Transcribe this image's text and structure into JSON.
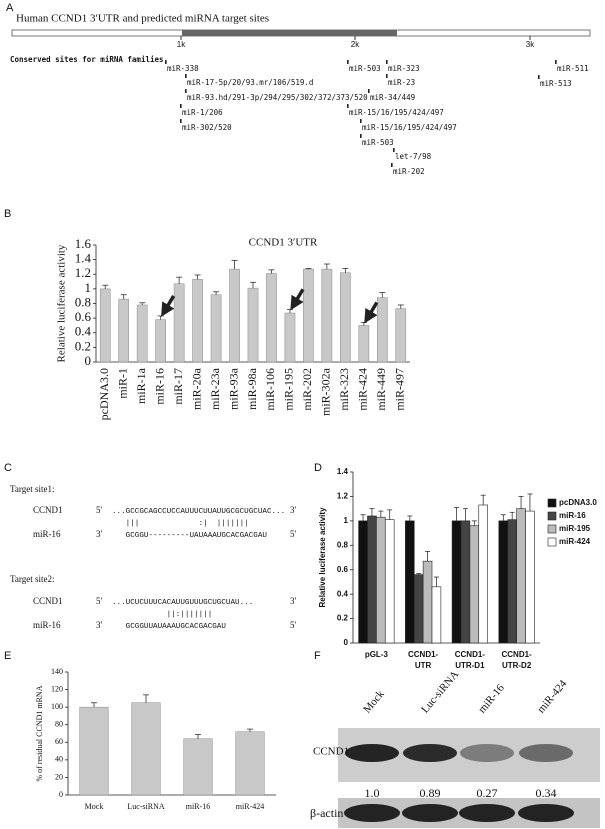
{
  "figure": {
    "panel_labels": [
      "A",
      "B",
      "C",
      "D",
      "E",
      "F"
    ]
  },
  "panel_a": {
    "title": "Human CCND1  3′UTR and predicted miRNA target sites",
    "scale_labels": [
      "1k",
      "2k",
      "3k"
    ],
    "subtitle": "Conserved sites for miRNA families",
    "sites": [
      "miR-338",
      "miR-17-5p/20/93.mr/106/519.d",
      "miR-93.hd/291-3p/294/295/302/372/373/520",
      "miR-1/206",
      "miR-302/520",
      "miR-503",
      "miR-323",
      "miR-23",
      "miR-34/449",
      "miR-15/16/195/424/497",
      "miR-15/16/195/424/497",
      "miR-503",
      "let-7/98",
      "miR-202",
      "miR-511",
      "miR-513"
    ]
  },
  "chart_data": [
    {
      "type": "bar",
      "title": "CCND1  3′UTR",
      "ylabel": "Relative luciferase activity",
      "categories": [
        "pcDNA3.0",
        "miR-1",
        "miR-1a",
        "miR-16",
        "miR-17",
        "miR-20a",
        "miR-23a",
        "miR-93a",
        "miR-98a",
        "miR-106",
        "miR-195",
        "miR-202",
        "miR-302a",
        "miR-323",
        "miR-424",
        "miR-449",
        "miR-497"
      ],
      "values": [
        1.0,
        0.86,
        0.78,
        0.58,
        1.07,
        1.13,
        0.92,
        1.27,
        1.01,
        1.21,
        0.67,
        1.27,
        1.27,
        1.22,
        0.5,
        0.88,
        0.73
      ],
      "errors": [
        0.05,
        0.06,
        0.03,
        0.05,
        0.09,
        0.06,
        0.04,
        0.12,
        0.08,
        0.05,
        0.05,
        0.01,
        0.07,
        0.06,
        0.04,
        0.07,
        0.05
      ],
      "color": "#c8c8c8",
      "ylim": [
        0,
        1.6
      ],
      "yticks": [
        0,
        0.2,
        0.4,
        0.6,
        0.8,
        1,
        1.2,
        1.4,
        1.6
      ]
    },
    {
      "type": "grouped_bar",
      "ylabel": "Relative luciferase activity",
      "categories": [
        "pGL-3",
        "CCND1-UTR",
        "CCND1-UTR-D1",
        "CCND1-UTR-D2"
      ],
      "series": [
        {
          "name": "pcDNA3.0",
          "color": "#111111",
          "values": [
            1.0,
            1.0,
            1.0,
            1.0
          ],
          "errors": [
            0.05,
            0.04,
            0.11,
            0.05
          ]
        },
        {
          "name": "miR-16",
          "color": "#444444",
          "values": [
            1.04,
            0.56,
            1.0,
            1.01
          ],
          "errors": [
            0.06,
            0.01,
            0.1,
            0.06
          ]
        },
        {
          "name": "miR-195",
          "color": "#bbbbbb",
          "values": [
            1.03,
            0.67,
            0.96,
            1.1
          ],
          "errors": [
            0.05,
            0.08,
            0.04,
            0.1
          ]
        },
        {
          "name": "miR-424",
          "color": "#ffffff",
          "values": [
            1.01,
            0.46,
            1.13,
            1.08
          ],
          "errors": [
            0.08,
            0.08,
            0.08,
            0.14
          ]
        }
      ],
      "ylim": [
        0,
        1.4
      ],
      "yticks": [
        0,
        0.2,
        0.4,
        0.6,
        0.8,
        1,
        1.2,
        1.4
      ]
    },
    {
      "type": "bar",
      "ylabel": "% of residual CCND1 mRNA",
      "categories": [
        "Mock",
        "Luc-siRNA",
        "miR-16",
        "miR-424"
      ],
      "values": [
        100,
        105,
        64,
        72
      ],
      "errors": [
        5,
        9,
        5,
        3
      ],
      "color": "#c8c8c8",
      "ylim": [
        0,
        140
      ],
      "yticks": [
        0,
        20,
        40,
        60,
        80,
        100,
        120,
        140
      ]
    }
  ],
  "panel_c": {
    "sites": [
      {
        "title": "Target site1:",
        "target_name": "CCND1",
        "target_5": "5′",
        "target_seq": "...GCCGCAGCCUCCAUUUCUUAUUGCGCUGCUAC...",
        "target_3": "3′",
        "pairing": "   |||             :|  |||||||",
        "mirna_name": "miR-16",
        "mirna_3": "3′",
        "mirna_seq": "   GCGGU---------UAUAAAUGCACGACGAU",
        "mirna_5": "5′"
      },
      {
        "title": "Target site2:",
        "target_name": "CCND1",
        "target_5": "5′",
        "target_seq": "...UCUCUUUCACAUUGUUUGCUGCUAU...",
        "target_3": "3′",
        "pairing": "            ||:|||||||",
        "mirna_name": "miR-16",
        "mirna_3": "3′",
        "mirna_seq": "   GCGGUUAUAAAUGCACGACGAU",
        "mirna_5": "5′"
      }
    ]
  },
  "panel_f": {
    "lanes": [
      "Mock",
      "Luc-siRNA",
      "miR-16",
      "miR-424"
    ],
    "rows": [
      "CCND1",
      "β-actin"
    ],
    "quantification": [
      "1.0",
      "0.89",
      "0.27",
      "0.34"
    ]
  }
}
